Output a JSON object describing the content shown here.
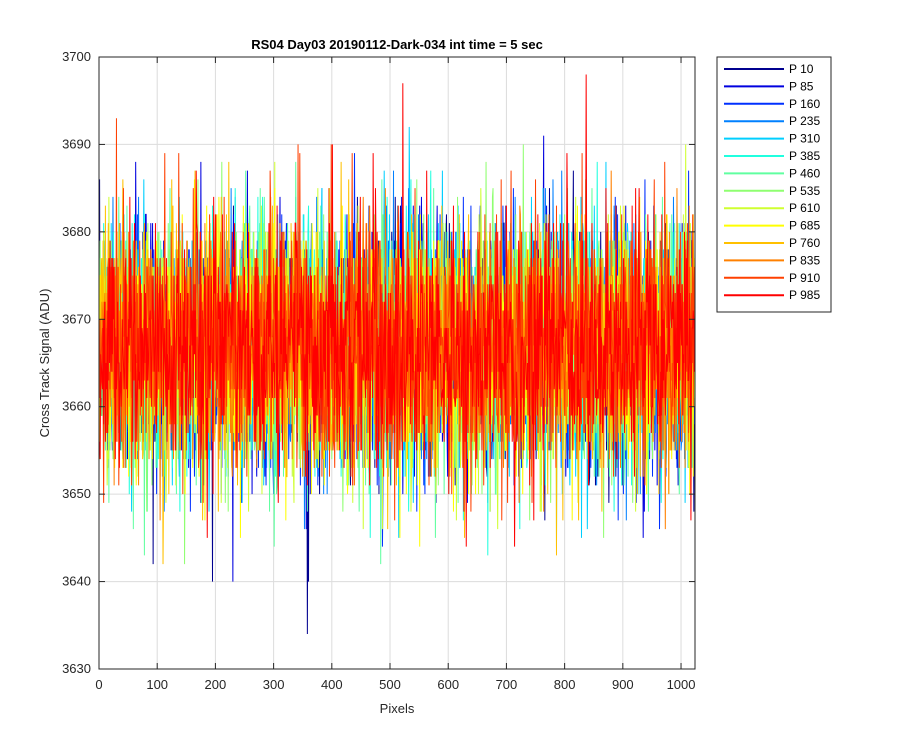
{
  "chart_data": {
    "type": "line",
    "title": "RS04 Day03 20190112-Dark-034 int time = 5 sec",
    "xlabel": "Pixels",
    "ylabel": "Cross Track Signal (ADU)",
    "xlim": [
      0,
      1024
    ],
    "ylim": [
      3630,
      3700
    ],
    "xticks": [
      0,
      100,
      200,
      300,
      400,
      500,
      600,
      700,
      800,
      900,
      1000
    ],
    "yticks": [
      3630,
      3640,
      3650,
      3660,
      3670,
      3680,
      3690,
      3700
    ],
    "grid": true,
    "legend_position": "outside-top-right",
    "series_distribution": {
      "mean": 3667,
      "std": 7,
      "min": 3634,
      "max": 3698,
      "points_per_series": 1024
    },
    "series": [
      {
        "name": "P 10",
        "color": "#00008F"
      },
      {
        "name": "P 85",
        "color": "#0000DF"
      },
      {
        "name": "P 160",
        "color": "#0030FF"
      },
      {
        "name": "P 235",
        "color": "#0080FF"
      },
      {
        "name": "P 310",
        "color": "#00CFFF"
      },
      {
        "name": "P 385",
        "color": "#20FFDF"
      },
      {
        "name": "P 460",
        "color": "#60FFA0"
      },
      {
        "name": "P 535",
        "color": "#8FFF70"
      },
      {
        "name": "P 610",
        "color": "#CFFF30"
      },
      {
        "name": "P 685",
        "color": "#FFFF00"
      },
      {
        "name": "P 760",
        "color": "#FFC000"
      },
      {
        "name": "P 835",
        "color": "#FF8000"
      },
      {
        "name": "P 910",
        "color": "#FF4000"
      },
      {
        "name": "P 985",
        "color": "#FF0000"
      }
    ],
    "notable_points": [
      {
        "series": "P 10",
        "x": 357,
        "y": 3634
      },
      {
        "series": "P 985",
        "x": 836,
        "y": 3698
      },
      {
        "series": "P 985",
        "x": 521,
        "y": 3697
      },
      {
        "series": "P 10",
        "x": 92,
        "y": 3642
      }
    ]
  }
}
